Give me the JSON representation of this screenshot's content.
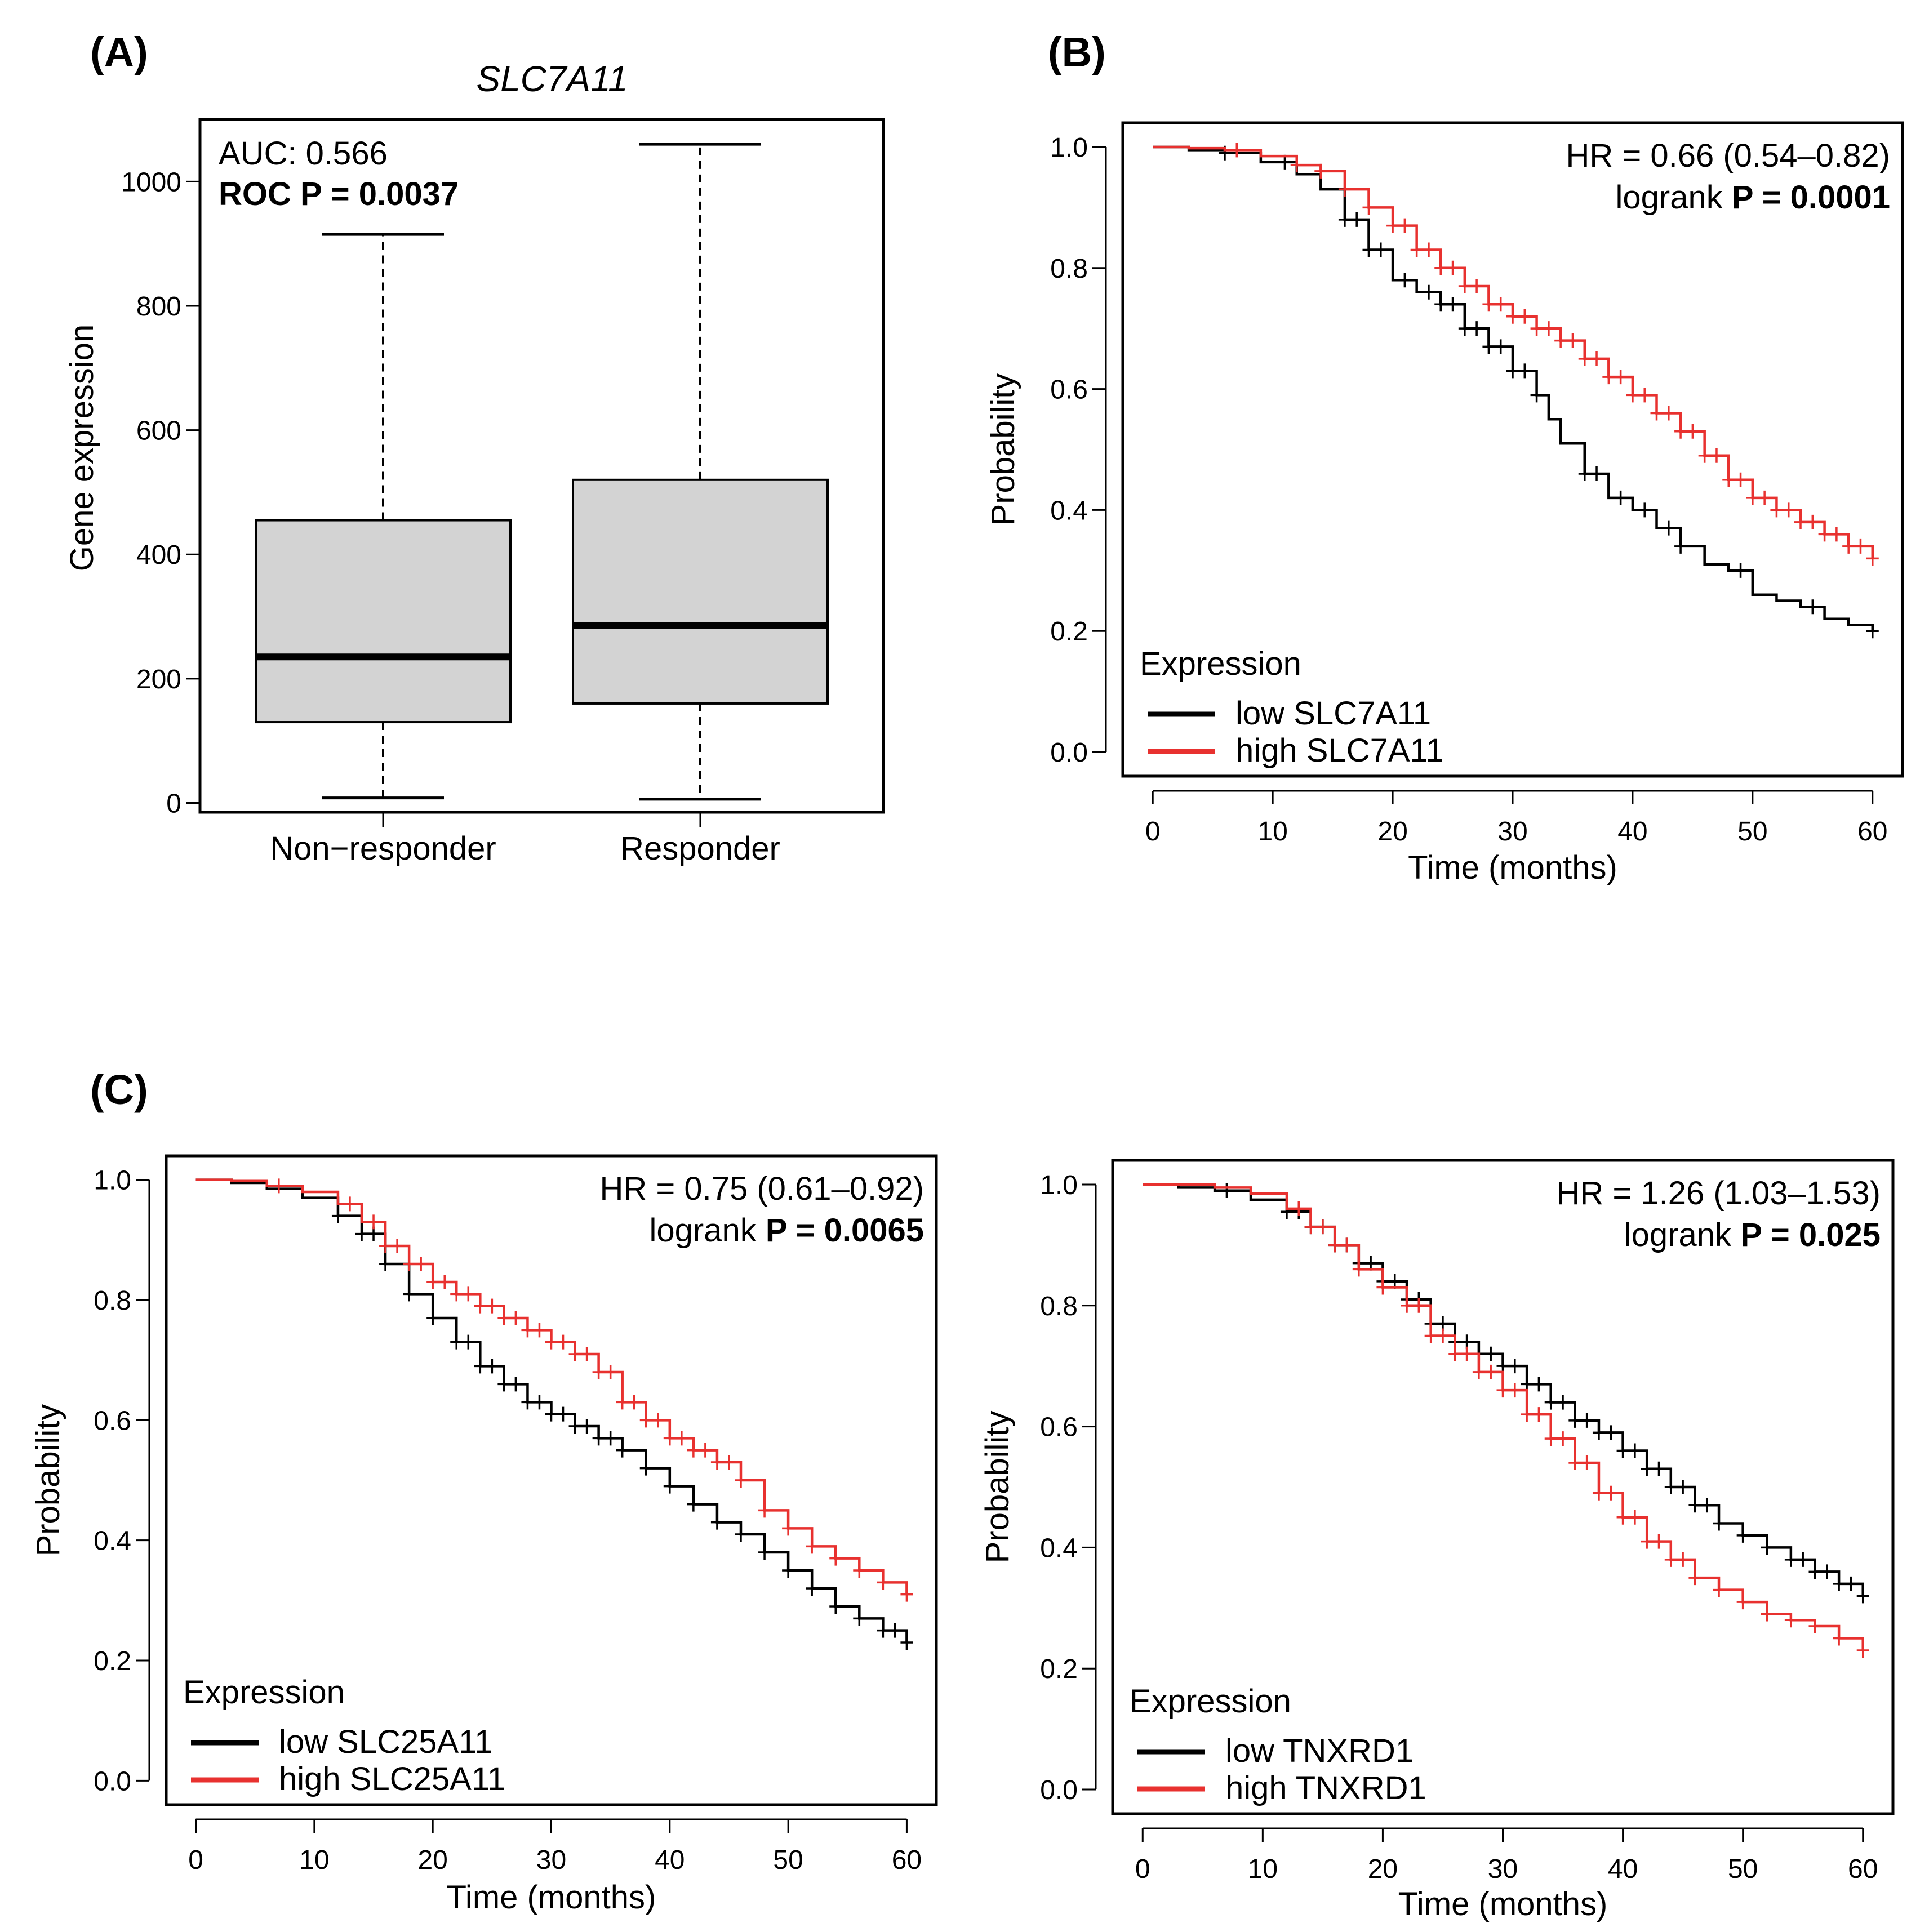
{
  "chart_data": [
    {
      "panel": "(A)",
      "type": "boxplot",
      "title": "SLC7A11",
      "ylabel": "Gene expression",
      "xlabel": "",
      "ylim": [
        -15,
        1100
      ],
      "yticks": [
        0,
        200,
        400,
        600,
        800,
        1000
      ],
      "categories": [
        "Non−responder",
        "Responder"
      ],
      "boxes": [
        {
          "name": "Non−responder",
          "min": 8,
          "q1": 130,
          "median": 235,
          "q3": 455,
          "max": 915
        },
        {
          "name": "Responder",
          "min": 6,
          "q1": 160,
          "median": 285,
          "q3": 520,
          "max": 1060
        }
      ],
      "box_color": "#d3d3d3",
      "annotations": {
        "auc": "AUC: 0.566",
        "roc_p": "ROC P = 0.0037"
      }
    },
    {
      "panel": "(B)",
      "type": "line",
      "subtype": "kaplan-meier",
      "xlabel": "Time (months)",
      "ylabel": "Probability",
      "xlim": [
        -2.5,
        62.5
      ],
      "ylim": [
        -0.04,
        1.04
      ],
      "xticks": [
        0,
        10,
        20,
        30,
        40,
        50,
        60
      ],
      "yticks": [
        0.0,
        0.2,
        0.4,
        0.6,
        0.8,
        1.0
      ],
      "hr_text": "HR = 0.66 (0.54–0.82)",
      "logrank_prefix": "logrank ",
      "logrank_p": "P = 0.0001",
      "legend": {
        "title": "Expression",
        "position": "bottom-left",
        "items": [
          "low SLC7A11",
          "high SLC7A11"
        ]
      },
      "series": [
        {
          "name": "low SLC7A11",
          "color": "#000000",
          "x": [
            0,
            3,
            6,
            9,
            12,
            14,
            16,
            18,
            20,
            22,
            24,
            26,
            28,
            30,
            32,
            33,
            34,
            36,
            38,
            40,
            42,
            44,
            46,
            48,
            50,
            52,
            54,
            56,
            58,
            60
          ],
          "y": [
            1.0,
            0.995,
            0.99,
            0.975,
            0.955,
            0.93,
            0.88,
            0.83,
            0.78,
            0.76,
            0.74,
            0.7,
            0.67,
            0.63,
            0.59,
            0.55,
            0.51,
            0.46,
            0.42,
            0.4,
            0.37,
            0.34,
            0.31,
            0.3,
            0.26,
            0.25,
            0.24,
            0.22,
            0.21,
            0.2
          ],
          "censor_x": [
            6,
            11,
            16,
            17,
            18,
            19,
            21,
            23,
            24,
            25,
            26,
            27,
            28,
            29,
            30,
            31,
            32,
            36,
            37,
            39,
            41,
            43,
            44,
            49,
            55,
            60
          ]
        },
        {
          "name": "high SLC7A11",
          "color": "#e8312f",
          "x": [
            0,
            3,
            6,
            9,
            12,
            14,
            16,
            18,
            20,
            22,
            24,
            26,
            28,
            30,
            32,
            34,
            36,
            38,
            40,
            42,
            44,
            46,
            48,
            50,
            52,
            54,
            56,
            58,
            60
          ],
          "y": [
            1.0,
            0.998,
            0.995,
            0.985,
            0.97,
            0.96,
            0.93,
            0.9,
            0.87,
            0.83,
            0.8,
            0.77,
            0.74,
            0.72,
            0.7,
            0.68,
            0.65,
            0.62,
            0.59,
            0.56,
            0.53,
            0.49,
            0.45,
            0.42,
            0.4,
            0.38,
            0.36,
            0.34,
            0.32
          ],
          "censor_x": [
            7,
            12,
            14,
            16,
            18,
            20,
            21,
            22,
            23,
            24,
            25,
            26,
            27,
            28,
            29,
            30,
            31,
            32,
            33,
            34,
            35,
            36,
            37,
            38,
            39,
            40,
            41,
            42,
            43,
            44,
            45,
            46,
            47,
            48,
            49,
            50,
            51,
            52,
            53,
            54,
            55,
            56,
            57,
            58,
            59,
            60
          ]
        }
      ]
    },
    {
      "panel": "(C)",
      "type": "line",
      "subtype": "kaplan-meier",
      "xlabel": "Time (months)",
      "ylabel": "Probability",
      "xlim": [
        -2.5,
        62.5
      ],
      "ylim": [
        -0.04,
        1.04
      ],
      "xticks": [
        0,
        10,
        20,
        30,
        40,
        50,
        60
      ],
      "yticks": [
        0.0,
        0.2,
        0.4,
        0.6,
        0.8,
        1.0
      ],
      "hr_text": "HR = 0.75 (0.61–0.92)",
      "logrank_prefix": "logrank ",
      "logrank_p": "P = 0.0065",
      "legend": {
        "title": "Expression",
        "position": "bottom-left",
        "items": [
          "low SLC25A11",
          "high SLC25A11"
        ]
      },
      "series": [
        {
          "name": "low SLC25A11",
          "color": "#000000",
          "x": [
            0,
            3,
            6,
            9,
            12,
            14,
            16,
            18,
            20,
            22,
            24,
            26,
            28,
            30,
            32,
            34,
            36,
            38,
            40,
            42,
            44,
            46,
            48,
            50,
            52,
            54,
            56,
            58,
            60
          ],
          "y": [
            1.0,
            0.995,
            0.985,
            0.97,
            0.94,
            0.91,
            0.86,
            0.81,
            0.77,
            0.73,
            0.69,
            0.66,
            0.63,
            0.61,
            0.59,
            0.57,
            0.55,
            0.52,
            0.49,
            0.46,
            0.43,
            0.41,
            0.38,
            0.35,
            0.32,
            0.29,
            0.27,
            0.25,
            0.23
          ],
          "censor_x": [
            12,
            14,
            15,
            16,
            18,
            20,
            22,
            23,
            24,
            25,
            26,
            27,
            28,
            29,
            30,
            31,
            32,
            33,
            34,
            35,
            36,
            38,
            40,
            42,
            44,
            46,
            48,
            50,
            52,
            54,
            56,
            58,
            59,
            60
          ]
        },
        {
          "name": "high SLC25A11",
          "color": "#e8312f",
          "x": [
            0,
            3,
            6,
            9,
            12,
            14,
            16,
            18,
            20,
            22,
            24,
            26,
            28,
            30,
            32,
            34,
            36,
            38,
            40,
            42,
            44,
            46,
            48,
            50,
            52,
            54,
            56,
            58,
            60
          ],
          "y": [
            1.0,
            0.998,
            0.99,
            0.98,
            0.96,
            0.93,
            0.89,
            0.86,
            0.83,
            0.81,
            0.79,
            0.77,
            0.75,
            0.73,
            0.71,
            0.68,
            0.63,
            0.6,
            0.57,
            0.55,
            0.53,
            0.5,
            0.45,
            0.42,
            0.39,
            0.37,
            0.35,
            0.33,
            0.31
          ],
          "censor_x": [
            7,
            13,
            15,
            16,
            17,
            18,
            19,
            20,
            21,
            22,
            23,
            24,
            25,
            26,
            27,
            28,
            29,
            30,
            31,
            32,
            33,
            34,
            35,
            36,
            37,
            38,
            39,
            40,
            41,
            42,
            43,
            44,
            45,
            46,
            48,
            50,
            52,
            54,
            56,
            58,
            60
          ]
        }
      ]
    },
    {
      "panel": "",
      "type": "line",
      "subtype": "kaplan-meier",
      "xlabel": "Time (months)",
      "ylabel": "Probability",
      "xlim": [
        -2.5,
        62.5
      ],
      "ylim": [
        -0.04,
        1.04
      ],
      "xticks": [
        0,
        10,
        20,
        30,
        40,
        50,
        60
      ],
      "yticks": [
        0.0,
        0.2,
        0.4,
        0.6,
        0.8,
        1.0
      ],
      "hr_text": "HR = 1.26 (1.03–1.53)",
      "logrank_prefix": "logrank ",
      "logrank_p": "P = 0.025",
      "legend": {
        "title": "Expression",
        "position": "bottom-left",
        "items": [
          "low TNXRD1",
          "high TNXRD1"
        ]
      },
      "series": [
        {
          "name": "low TNXRD1",
          "color": "#000000",
          "x": [
            0,
            3,
            6,
            9,
            12,
            14,
            16,
            18,
            20,
            22,
            24,
            26,
            28,
            30,
            32,
            34,
            36,
            38,
            40,
            42,
            44,
            46,
            48,
            50,
            52,
            54,
            56,
            58,
            60
          ],
          "y": [
            1.0,
            0.995,
            0.99,
            0.975,
            0.955,
            0.93,
            0.9,
            0.87,
            0.84,
            0.81,
            0.77,
            0.74,
            0.72,
            0.7,
            0.67,
            0.64,
            0.61,
            0.59,
            0.56,
            0.53,
            0.5,
            0.47,
            0.44,
            0.42,
            0.4,
            0.38,
            0.36,
            0.34,
            0.32
          ],
          "censor_x": [
            7,
            12,
            13,
            14,
            15,
            16,
            17,
            18,
            19,
            20,
            21,
            22,
            23,
            24,
            25,
            26,
            27,
            28,
            29,
            30,
            31,
            32,
            33,
            34,
            35,
            36,
            37,
            38,
            39,
            40,
            41,
            42,
            43,
            44,
            45,
            46,
            47,
            48,
            50,
            52,
            54,
            55,
            56,
            57,
            58,
            59,
            60
          ]
        },
        {
          "name": "high TNXRD1",
          "color": "#e8312f",
          "x": [
            0,
            3,
            6,
            9,
            12,
            14,
            16,
            18,
            20,
            22,
            24,
            26,
            28,
            30,
            32,
            34,
            36,
            38,
            40,
            42,
            44,
            46,
            48,
            50,
            52,
            54,
            56,
            58,
            60
          ],
          "y": [
            1.0,
            1.0,
            0.995,
            0.985,
            0.96,
            0.93,
            0.9,
            0.86,
            0.83,
            0.8,
            0.75,
            0.72,
            0.69,
            0.66,
            0.62,
            0.58,
            0.54,
            0.49,
            0.45,
            0.41,
            0.38,
            0.35,
            0.33,
            0.31,
            0.29,
            0.28,
            0.27,
            0.25,
            0.23
          ],
          "censor_x": [
            13,
            14,
            15,
            16,
            17,
            18,
            20,
            22,
            23,
            24,
            25,
            26,
            27,
            28,
            29,
            30,
            31,
            32,
            33,
            34,
            35,
            36,
            37,
            38,
            39,
            40,
            41,
            42,
            43,
            44,
            45,
            46,
            48,
            50,
            52,
            54,
            56,
            58,
            60
          ]
        }
      ]
    }
  ]
}
